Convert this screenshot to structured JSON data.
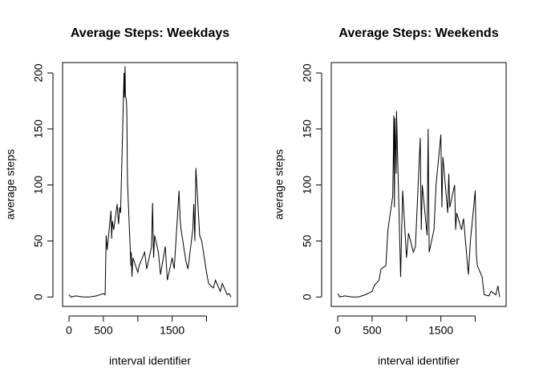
{
  "chart_data": [
    {
      "type": "line",
      "title": "Average Steps: Weekdays",
      "xlabel": "interval identifier",
      "ylabel": "average steps",
      "color": "#000000",
      "x": [
        0,
        30,
        100,
        200,
        300,
        400,
        500,
        525,
        540,
        555,
        610,
        620,
        630,
        650,
        700,
        720,
        735,
        750,
        800,
        805,
        815,
        820,
        835,
        840,
        850,
        900,
        905,
        915,
        930,
        1000,
        1020,
        1100,
        1130,
        1200,
        1215,
        1230,
        1245,
        1300,
        1330,
        1400,
        1430,
        1500,
        1530,
        1600,
        1615,
        1630,
        1700,
        1730,
        1800,
        1815,
        1830,
        1845,
        1900,
        1930,
        2000,
        2030,
        2100,
        2130,
        2200,
        2230,
        2300,
        2330,
        2355
      ],
      "values": [
        2,
        0,
        1,
        0,
        0,
        1,
        3,
        2,
        55,
        42,
        77,
        52,
        68,
        60,
        83,
        65,
        80,
        75,
        200,
        178,
        206,
        180,
        175,
        167,
        103,
        28,
        40,
        18,
        35,
        22,
        28,
        40,
        25,
        45,
        84,
        35,
        55,
        40,
        20,
        45,
        15,
        35,
        25,
        95,
        70,
        60,
        32,
        25,
        60,
        83,
        50,
        115,
        55,
        50,
        22,
        12,
        8,
        15,
        5,
        12,
        2,
        3,
        0
      ],
      "xlim": [
        -94.2,
        2449.2
      ],
      "ylim": [
        -8.4,
        209.3
      ],
      "xticks": [
        0,
        500,
        {
          "value": 1000,
          "label": null
        },
        1500,
        {
          "value": 2000,
          "label": null
        }
      ],
      "yticks": [
        0,
        50,
        100,
        150,
        200
      ]
    },
    {
      "type": "line",
      "title": "Average Steps: Weekends",
      "xlabel": "interval identifier",
      "ylabel": "average steps",
      "color": "#000000",
      "x": [
        0,
        30,
        100,
        200,
        300,
        400,
        500,
        530,
        600,
        630,
        700,
        730,
        800,
        810,
        815,
        825,
        830,
        850,
        855,
        915,
        930,
        945,
        1000,
        1030,
        1100,
        1130,
        1200,
        1215,
        1230,
        1300,
        1315,
        1330,
        1400,
        1430,
        1500,
        1515,
        1530,
        1600,
        1615,
        1630,
        1700,
        1715,
        1730,
        1800,
        1830,
        1900,
        1930,
        2000,
        2015,
        2030,
        2100,
        2130,
        2200,
        2230,
        2300,
        2330,
        2355
      ],
      "values": [
        3,
        0,
        1,
        0,
        0,
        2,
        5,
        10,
        15,
        25,
        28,
        60,
        90,
        130,
        162,
        80,
        160,
        110,
        166,
        18,
        60,
        95,
        35,
        57,
        40,
        45,
        142,
        60,
        100,
        55,
        150,
        40,
        60,
        100,
        145,
        80,
        125,
        75,
        110,
        80,
        100,
        60,
        75,
        60,
        70,
        20,
        50,
        95,
        40,
        28,
        18,
        2,
        1,
        5,
        2,
        10,
        0
      ],
      "xlim": [
        -94.2,
        2449.2
      ],
      "ylim": [
        -8.4,
        209.3
      ],
      "xticks": [
        0,
        500,
        {
          "value": 1000,
          "label": null
        },
        1500,
        {
          "value": 2000,
          "label": null
        }
      ],
      "yticks": [
        0,
        50,
        100,
        150,
        200
      ]
    }
  ]
}
